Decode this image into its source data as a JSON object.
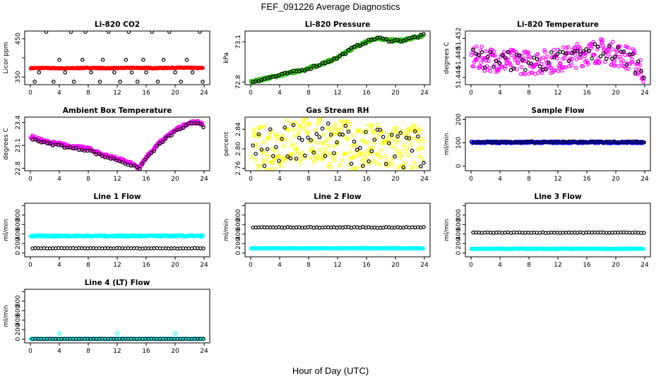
{
  "title": "FEF_091226  Average Diagnostics",
  "xlabel": "Hour of Day (UTC)",
  "chart_data": [
    {
      "type": "scatter",
      "title": "Li-820 CO2",
      "ylabel": "Licor ppm",
      "xlim": [
        0,
        24
      ],
      "ylim": [
        330,
        470
      ],
      "xticks": [
        0,
        4,
        8,
        12,
        16,
        20,
        24
      ],
      "yticks": [
        350,
        400,
        450
      ],
      "ytick_labels": [
        "350",
        "",
        "450"
      ],
      "series": [
        {
          "name": "",
          "color": "#ff0000",
          "style": "dense",
          "y_start": 373,
          "y_end": 374,
          "amplitude": 2,
          "noise": 1
        },
        {
          "name": "",
          "color": "#000000",
          "style": "sparse",
          "x": [
            0.6,
            1.2,
            2.2,
            3.2,
            4.0,
            4.8,
            5.6,
            6.0,
            7.2,
            7.6,
            8.4,
            9.6,
            10.0,
            10.8,
            11.6,
            12.4,
            13.2,
            13.6,
            14.0,
            14.8,
            15.6,
            16.0,
            16.8,
            17.6,
            18.4,
            19.2,
            20.0,
            20.8,
            21.6,
            22.4,
            23.4,
            23.8
          ],
          "y": [
            338,
            362,
            468,
            338,
            395,
            362,
            468,
            338,
            395,
            468,
            362,
            338,
            395,
            468,
            362,
            338,
            395,
            468,
            362,
            338,
            395,
            362,
            468,
            338,
            395,
            468,
            362,
            338,
            395,
            362,
            468,
            338
          ]
        }
      ]
    },
    {
      "type": "scatter",
      "title": "Li-820 Pressure",
      "ylabel": "kPa",
      "xlim": [
        0,
        24
      ],
      "ylim": [
        72.78,
        73.18
      ],
      "xticks": [
        0,
        4,
        8,
        12,
        16,
        20,
        24
      ],
      "yticks": [
        72.8,
        73.1
      ],
      "ytick_labels": [
        "72.8",
        "73.1"
      ],
      "series": [
        {
          "name": "",
          "color": "#22bb00",
          "style": "dense",
          "curve": [
            [
              0,
              72.8
            ],
            [
              4,
              72.85
            ],
            [
              8,
              72.9
            ],
            [
              12,
              72.98
            ],
            [
              14,
              73.05
            ],
            [
              16,
              73.1
            ],
            [
              17.5,
              73.13
            ],
            [
              19,
              73.11
            ],
            [
              21,
              73.11
            ],
            [
              24,
              73.15
            ]
          ],
          "noise": 0.01
        },
        {
          "name": "",
          "color": "#000000",
          "style": "sparse",
          "curve": [
            [
              0,
              72.8
            ],
            [
              4,
              72.85
            ],
            [
              8,
              72.9
            ],
            [
              12,
              72.98
            ],
            [
              14,
              73.05
            ],
            [
              16,
              73.1
            ],
            [
              17.5,
              73.13
            ],
            [
              19,
              73.11
            ],
            [
              21,
              73.11
            ],
            [
              24,
              73.15
            ]
          ],
          "noise": 0.01
        }
      ]
    },
    {
      "type": "scatter",
      "title": "Li-820 Temperature",
      "ylabel": "degrees C",
      "xlim": [
        0,
        24
      ],
      "ylim": [
        51.4425,
        51.4535
      ],
      "xticks": [
        0,
        4,
        8,
        12,
        16,
        20,
        24
      ],
      "yticks": [
        51.444,
        51.448,
        51.452
      ],
      "ytick_labels": [
        "51.444",
        "51.448",
        "51.452"
      ],
      "series": [
        {
          "name": "",
          "color": "#ff00ff",
          "style": "dense",
          "curve": [
            [
              0,
              51.448
            ],
            [
              8,
              51.447
            ],
            [
              12,
              51.4475
            ],
            [
              16,
              51.449
            ],
            [
              18,
              51.4495
            ],
            [
              22,
              51.448
            ],
            [
              24,
              51.445
            ]
          ],
          "noise": 0.0025
        },
        {
          "name": "",
          "color": "#000000",
          "style": "sparse",
          "curve": [
            [
              0,
              51.448
            ],
            [
              8,
              51.447
            ],
            [
              12,
              51.4475
            ],
            [
              16,
              51.449
            ],
            [
              18,
              51.4495
            ],
            [
              22,
              51.448
            ],
            [
              24,
              51.445
            ]
          ],
          "noise": 0.002
        }
      ]
    },
    {
      "type": "scatter",
      "title": "Ambient Box Temperature",
      "ylabel": "degrees C",
      "xlim": [
        0,
        24
      ],
      "ylim": [
        22.77,
        23.47
      ],
      "xticks": [
        0,
        4,
        8,
        12,
        16,
        20,
        24
      ],
      "yticks": [
        22.8,
        23.1,
        23.4
      ],
      "ytick_labels": [
        "22.8",
        "23.1",
        "23.4"
      ],
      "series": [
        {
          "name": "",
          "color": "#ff00ff",
          "style": "dense",
          "curve": [
            [
              0,
              23.22
            ],
            [
              2,
              23.15
            ],
            [
              4,
              23.12
            ],
            [
              6,
              23.08
            ],
            [
              8,
              23.06
            ],
            [
              10,
              22.98
            ],
            [
              12,
              22.93
            ],
            [
              14,
              22.86
            ],
            [
              15,
              22.8
            ],
            [
              16,
              22.95
            ],
            [
              18,
              23.15
            ],
            [
              20,
              23.3
            ],
            [
              22,
              23.4
            ],
            [
              23.5,
              23.4
            ],
            [
              24,
              23.35
            ]
          ],
          "noise": 0.02
        },
        {
          "name": "",
          "color": "#000000",
          "style": "sparse",
          "curve": [
            [
              0,
              23.2
            ],
            [
              2,
              23.13
            ],
            [
              4,
              23.1
            ],
            [
              6,
              23.06
            ],
            [
              8,
              23.04
            ],
            [
              10,
              22.96
            ],
            [
              12,
              22.91
            ],
            [
              14,
              22.84
            ],
            [
              15,
              22.79
            ],
            [
              16,
              22.93
            ],
            [
              18,
              23.13
            ],
            [
              20,
              23.28
            ],
            [
              22,
              23.38
            ],
            [
              23.5,
              23.38
            ],
            [
              24,
              23.33
            ]
          ],
          "noise": 0.015
        }
      ]
    },
    {
      "type": "scatter",
      "title": "Gas Stream RH",
      "ylabel": "percent",
      "xlim": [
        0,
        24
      ],
      "ylim": [
        2.755,
        2.865
      ],
      "xticks": [
        0,
        4,
        8,
        12,
        16,
        20,
        24
      ],
      "yticks": [
        2.76,
        2.8,
        2.84
      ],
      "ytick_labels": [
        "2.76",
        "2.80",
        "2.84"
      ],
      "series": [
        {
          "name": "",
          "color": "#ffff00",
          "style": "dense",
          "curve": [
            [
              0,
              2.79
            ],
            [
              6,
              2.82
            ],
            [
              12,
              2.81
            ],
            [
              18,
              2.8
            ],
            [
              24,
              2.8
            ]
          ],
          "noise": 0.05
        },
        {
          "name": "",
          "color": "#000000",
          "style": "sparse",
          "curve": [
            [
              0,
              2.79
            ],
            [
              6,
              2.82
            ],
            [
              12,
              2.81
            ],
            [
              18,
              2.8
            ],
            [
              24,
              2.8
            ]
          ],
          "noise": 0.04
        }
      ]
    },
    {
      "type": "scatter",
      "title": "Sample Flow",
      "ylabel": "ml/min",
      "xlim": [
        0,
        24
      ],
      "ylim": [
        -20,
        210
      ],
      "xticks": [
        0,
        4,
        8,
        12,
        16,
        20,
        24
      ],
      "yticks": [
        0,
        100,
        200
      ],
      "ytick_labels": [
        "0",
        "100",
        "200"
      ],
      "series": [
        {
          "name": "",
          "color": "#0000ff",
          "style": "dense",
          "curve": [
            [
              0,
              102
            ],
            [
              24,
              102
            ]
          ],
          "noise": 4
        },
        {
          "name": "",
          "color": "#000000",
          "style": "sparse",
          "curve": [
            [
              0,
              103
            ],
            [
              24,
              103
            ]
          ],
          "noise": 3
        }
      ]
    },
    {
      "type": "scatter",
      "title": "Line 1 Flow",
      "ylabel": "ml/min",
      "xlim": [
        0,
        24
      ],
      "ylim": [
        -80,
        1050
      ],
      "xticks": [
        0,
        4,
        8,
        12,
        16,
        20,
        24
      ],
      "yticks": [
        0,
        200,
        400,
        600,
        800,
        1000
      ],
      "ytick_labels": [
        "0",
        "200",
        "400",
        "600",
        "800",
        ""
      ],
      "series": [
        {
          "name": "",
          "color": "#00ffff",
          "style": "dense",
          "curve": [
            [
              0,
              360
            ],
            [
              24,
              360
            ]
          ],
          "noise": 15
        },
        {
          "name": "",
          "color": "#000000",
          "style": "sparse",
          "curve": [
            [
              0,
              100
            ],
            [
              24,
              100
            ]
          ],
          "noise": 4
        }
      ]
    },
    {
      "type": "scatter",
      "title": "Line 2 Flow",
      "ylabel": "ml/min",
      "xlim": [
        0,
        24
      ],
      "ylim": [
        -80,
        1050
      ],
      "xticks": [
        0,
        4,
        8,
        12,
        16,
        20,
        24
      ],
      "yticks": [
        0,
        200,
        400,
        600,
        800,
        1000
      ],
      "ytick_labels": [
        "0",
        "200",
        "400",
        "600",
        "800",
        ""
      ],
      "series": [
        {
          "name": "",
          "color": "#00ffff",
          "style": "dense",
          "curve": [
            [
              0,
              100
            ],
            [
              24,
              100
            ]
          ],
          "noise": 8
        },
        {
          "name": "",
          "color": "#000000",
          "style": "sparse",
          "curve": [
            [
              0,
              540
            ],
            [
              24,
              540
            ]
          ],
          "noise": 8
        }
      ]
    },
    {
      "type": "scatter",
      "title": "Line 3 Flow",
      "ylabel": "ml/min",
      "xlim": [
        0,
        24
      ],
      "ylim": [
        -80,
        1050
      ],
      "xticks": [
        0,
        4,
        8,
        12,
        16,
        20,
        24
      ],
      "yticks": [
        0,
        200,
        400,
        600,
        800,
        1000
      ],
      "ytick_labels": [
        "0",
        "200",
        "400",
        "600",
        "800",
        ""
      ],
      "series": [
        {
          "name": "",
          "color": "#00ffff",
          "style": "dense",
          "curve": [
            [
              0,
              90
            ],
            [
              24,
              90
            ]
          ],
          "noise": 8
        },
        {
          "name": "",
          "color": "#000000",
          "style": "sparse",
          "curve": [
            [
              0,
              430
            ],
            [
              24,
              430
            ]
          ],
          "noise": 6
        }
      ]
    },
    {
      "type": "scatter",
      "title": "Line 4 (LT) Flow",
      "ylabel": "ml/min",
      "xlim": [
        0,
        24
      ],
      "ylim": [
        -80,
        1050
      ],
      "xticks": [
        0,
        4,
        8,
        12,
        16,
        20,
        24
      ],
      "yticks": [
        0,
        200,
        400,
        600,
        800,
        1000
      ],
      "ytick_labels": [
        "0",
        "200",
        "400",
        "600",
        "800",
        ""
      ],
      "series": [
        {
          "name": "",
          "color": "#00ffff",
          "style": "dense",
          "curve": [
            [
              0,
              5
            ],
            [
              24,
              5
            ]
          ],
          "noise": 4,
          "extra_x": [
            4,
            12,
            20
          ],
          "extra_y": [
            120,
            120,
            120
          ]
        },
        {
          "name": "",
          "color": "#000000",
          "style": "sparse",
          "curve": [
            [
              0,
              5
            ],
            [
              24,
              5
            ]
          ],
          "noise": 2
        }
      ]
    }
  ]
}
